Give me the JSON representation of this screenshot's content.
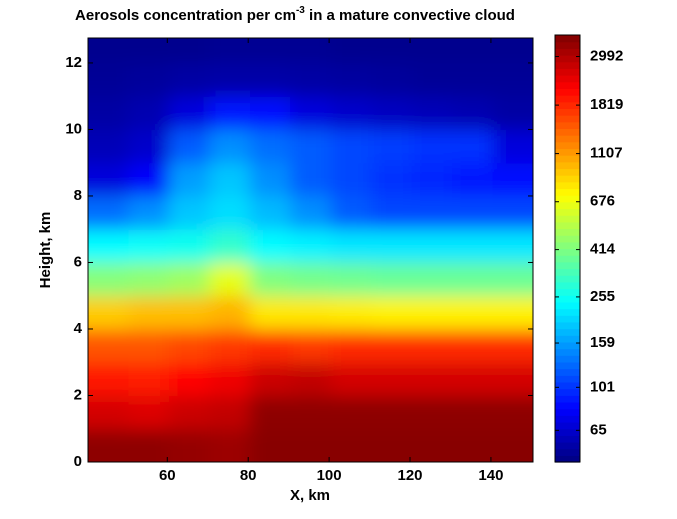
{
  "chart_data": {
    "type": "heatmap",
    "title": [
      "Aerosols concentration per cm",
      "-3",
      " in a mature convective cloud"
    ],
    "x_label": "X, km",
    "y_label": "Height, km",
    "xbins": [
      40.4,
      50.4,
      60.4,
      70.4,
      80.4,
      90.4,
      100.4,
      110.4,
      120.4,
      130.4,
      140.4,
      150.4
    ],
    "ybins": [
      0,
      1,
      2,
      3,
      4,
      5,
      6,
      7,
      8,
      9,
      10,
      11,
      12,
      12.75
    ],
    "xlim": [
      40.4,
      150.4
    ],
    "ylim": [
      0,
      12.75
    ],
    "xticks": [
      60,
      80,
      100,
      120,
      140
    ],
    "yticks": [
      0,
      2,
      4,
      6,
      8,
      10,
      12
    ],
    "z": [
      [
        3500,
        3500,
        3400,
        3300,
        3600,
        3600,
        3600,
        3600,
        3600,
        3600,
        3600
      ],
      [
        2600,
        2500,
        2700,
        2800,
        3500,
        3500,
        3500,
        3500,
        3500,
        3500,
        3500
      ],
      [
        2000,
        1900,
        2100,
        2300,
        2700,
        2800,
        2600,
        2600,
        2600,
        2600,
        2600
      ],
      [
        1500,
        1500,
        1600,
        1700,
        1800,
        1700,
        1800,
        1800,
        1800,
        1800,
        1800
      ],
      [
        900,
        950,
        950,
        1000,
        800,
        800,
        780,
        760,
        760,
        760,
        760
      ],
      [
        430,
        450,
        480,
        650,
        420,
        400,
        390,
        380,
        380,
        380,
        380
      ],
      [
        240,
        250,
        260,
        300,
        240,
        230,
        220,
        220,
        220,
        220,
        220
      ],
      [
        130,
        150,
        190,
        210,
        180,
        150,
        120,
        110,
        110,
        110,
        110
      ],
      [
        70,
        80,
        160,
        190,
        150,
        120,
        110,
        100,
        95,
        90,
        85
      ],
      [
        60,
        65,
        120,
        150,
        130,
        120,
        110,
        105,
        100,
        100,
        70
      ],
      [
        55,
        58,
        70,
        90,
        85,
        70,
        65,
        62,
        60,
        58,
        55
      ],
      [
        52,
        53,
        55,
        56,
        56,
        55,
        54,
        53,
        52,
        52,
        52
      ],
      [
        50,
        50,
        50,
        51,
        51,
        51,
        50,
        50,
        50,
        50,
        50
      ]
    ],
    "colormap": "jet",
    "color_scale": "log",
    "colorbar_lim": [
      47,
      3730
    ],
    "colorbar_ticks": [
      65,
      101,
      159,
      255,
      414,
      676,
      1107,
      1819,
      2992
    ]
  }
}
